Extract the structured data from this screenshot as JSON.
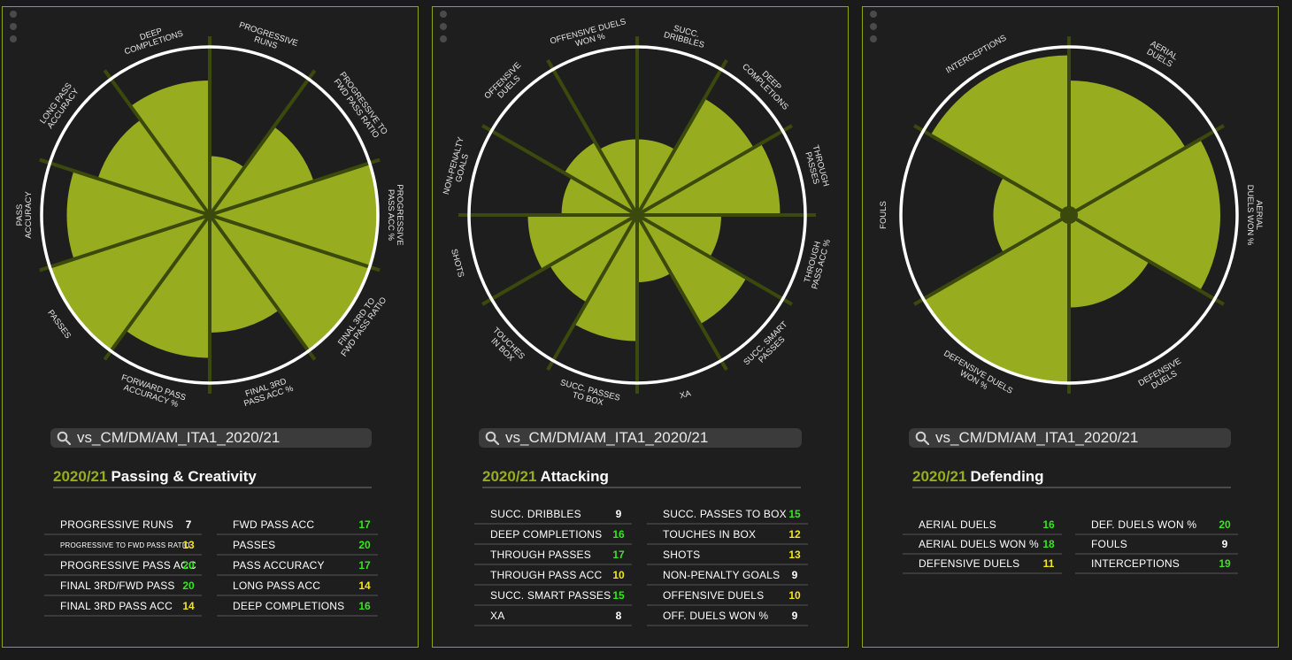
{
  "colors": {
    "accent": "#97ad1f",
    "slice": "#97ad1f",
    "white": "#ffffff",
    "yellow": "#f2e41e",
    "green": "#37e61f"
  },
  "panels": [
    {
      "search_text": "vs_CM/DM/AM_ITA1_2020/21",
      "season": "2020/21",
      "title": "Passing & Creativity",
      "stats_left": [
        {
          "label": "PROGRESSIVE RUNS",
          "value": "7",
          "color": "white"
        },
        {
          "label": "PROGRESSIVE TO FWD PASS RATIO",
          "value": "13",
          "color": "yellow",
          "small": true
        },
        {
          "label": "PROGRESSIVE PASS ACC",
          "value": "20",
          "color": "green"
        },
        {
          "label": "FINAL 3RD/FWD PASS",
          "value": "20",
          "color": "green"
        },
        {
          "label": "FINAL 3RD PASS ACC",
          "value": "14",
          "color": "yellow"
        }
      ],
      "stats_right": [
        {
          "label": "FWD PASS ACC",
          "value": "17",
          "color": "green"
        },
        {
          "label": "PASSES",
          "value": "20",
          "color": "green"
        },
        {
          "label": "PASS ACCURACY",
          "value": "17",
          "color": "green"
        },
        {
          "label": "LONG PASS ACC",
          "value": "14",
          "color": "yellow"
        },
        {
          "label": "DEEP COMPLETIONS",
          "value": "16",
          "color": "green"
        }
      ]
    },
    {
      "search_text": "vs_CM/DM/AM_ITA1_2020/21",
      "season": "2020/21",
      "title": "Attacking",
      "stats_left": [
        {
          "label": "SUCC. DRIBBLES",
          "value": "9",
          "color": "white"
        },
        {
          "label": "DEEP COMPLETIONS",
          "value": "16",
          "color": "green"
        },
        {
          "label": "THROUGH PASSES",
          "value": "17",
          "color": "green"
        },
        {
          "label": "THROUGH PASS ACC",
          "value": "10",
          "color": "yellow"
        },
        {
          "label": "SUCC. SMART PASSES",
          "value": "15",
          "color": "green"
        },
        {
          "label": "XA",
          "value": "8",
          "color": "white"
        }
      ],
      "stats_right": [
        {
          "label": "SUCC. PASSES TO BOX",
          "value": "15",
          "color": "green"
        },
        {
          "label": "TOUCHES IN BOX",
          "value": "12",
          "color": "yellow"
        },
        {
          "label": "SHOTS",
          "value": "13",
          "color": "yellow"
        },
        {
          "label": "NON-PENALTY GOALS",
          "value": "9",
          "color": "white"
        },
        {
          "label": "OFFENSIVE DUELS",
          "value": "10",
          "color": "yellow"
        },
        {
          "label": "OFF. DUELS WON %",
          "value": "9",
          "color": "white"
        }
      ]
    },
    {
      "search_text": "vs_CM/DM/AM_ITA1_2020/21",
      "season": "2020/21",
      "title": "Defending",
      "stats_left": [
        {
          "label": "AERIAL DUELS",
          "value": "16",
          "color": "green"
        },
        {
          "label": "AERIAL DUELS WON %",
          "value": "18",
          "color": "green"
        },
        {
          "label": "DEFENSIVE DUELS",
          "value": "11",
          "color": "yellow"
        }
      ],
      "stats_right": [
        {
          "label": "DEF. DUELS WON %",
          "value": "20",
          "color": "green"
        },
        {
          "label": "FOULS",
          "value": "9",
          "color": "white"
        },
        {
          "label": "INTERCEPTIONS",
          "value": "19",
          "color": "green"
        }
      ]
    }
  ],
  "chart_data": [
    {
      "type": "polar-area",
      "title": "Passing & Creativity",
      "max": 20,
      "slices": [
        {
          "label": [
            "PROGRESSIVE",
            "RUNS"
          ],
          "value": 7
        },
        {
          "label": [
            "PROGRESSIVE TO",
            "FWD PASS RATIO"
          ],
          "value": 13
        },
        {
          "label": [
            "PROGRESSIVE",
            "PASS ACC %"
          ],
          "value": 20
        },
        {
          "label": [
            "FINAL 3RD TO",
            "FWD PASS RATIO"
          ],
          "value": 20
        },
        {
          "label": [
            "FINAL 3RD",
            "PASS ACC %"
          ],
          "value": 14
        },
        {
          "label": [
            "FORWARD PASS",
            "ACCURACY %"
          ],
          "value": 17
        },
        {
          "label": [
            "PASSES"
          ],
          "value": 20
        },
        {
          "label": [
            "PASS",
            "ACCURACY"
          ],
          "value": 17
        },
        {
          "label": [
            "LONG PASS",
            "ACCURACY"
          ],
          "value": 14
        },
        {
          "label": [
            "DEEP",
            "COMPLETIONS"
          ],
          "value": 16
        }
      ]
    },
    {
      "type": "polar-area",
      "title": "Attacking",
      "max": 20,
      "slices": [
        {
          "label": [
            "SUCC.",
            "DRIBBLES"
          ],
          "value": 9
        },
        {
          "label": [
            "DEEP",
            "COMPLETIONS"
          ],
          "value": 16
        },
        {
          "label": [
            "THROUGH",
            "PASSES"
          ],
          "value": 17
        },
        {
          "label": [
            "THROUGH",
            "PASS ACC %"
          ],
          "value": 10
        },
        {
          "label": [
            "SUCC. SMART",
            "PASSES"
          ],
          "value": 15
        },
        {
          "label": [
            "XA"
          ],
          "value": 8
        },
        {
          "label": [
            "SUCC. PASSES",
            "TO BOX"
          ],
          "value": 15
        },
        {
          "label": [
            "TOUCHES",
            "IN BOX"
          ],
          "value": 12
        },
        {
          "label": [
            "SHOTS"
          ],
          "value": 13
        },
        {
          "label": [
            "NON-PENALTY",
            "GOALS"
          ],
          "value": 9
        },
        {
          "label": [
            "OFFENSIVE",
            "DUELS"
          ],
          "value": 10
        },
        {
          "label": [
            "OFFENSIVE DUELS",
            "WON %"
          ],
          "value": 9
        }
      ]
    },
    {
      "type": "polar-area",
      "title": "Defending",
      "max": 20,
      "slices": [
        {
          "label": [
            "AERIAL",
            "DUELS"
          ],
          "value": 16
        },
        {
          "label": [
            "AERIAL",
            "DUELS WON %"
          ],
          "value": 18
        },
        {
          "label": [
            "DEFENSIVE",
            "DUELS"
          ],
          "value": 11
        },
        {
          "label": [
            "DEFENSIVE DUELS",
            "WON %"
          ],
          "value": 20
        },
        {
          "label": [
            "FOULS"
          ],
          "value": 9
        },
        {
          "label": [
            "INTERCEPTIONS"
          ],
          "value": 19
        }
      ]
    }
  ]
}
